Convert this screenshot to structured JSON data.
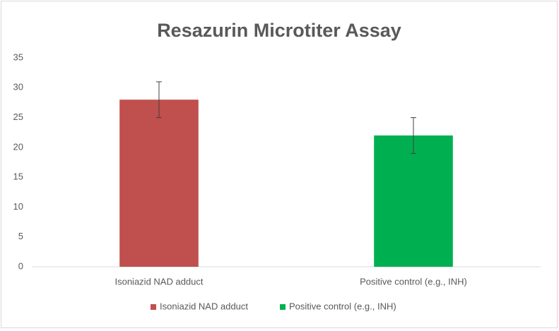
{
  "chart_data": {
    "type": "bar",
    "title": "Resazurin Microtiter Assay",
    "categories": [
      "Isoniazid NAD adduct",
      "Positive control (e.g., INH)"
    ],
    "values": [
      28,
      22
    ],
    "errors": [
      3,
      3
    ],
    "colors": [
      "#c0504d",
      "#00b050"
    ],
    "ylim": [
      0,
      35
    ],
    "yticks": [
      0,
      5,
      10,
      15,
      20,
      25,
      30,
      35
    ],
    "grid": false,
    "legend": "bottom"
  }
}
